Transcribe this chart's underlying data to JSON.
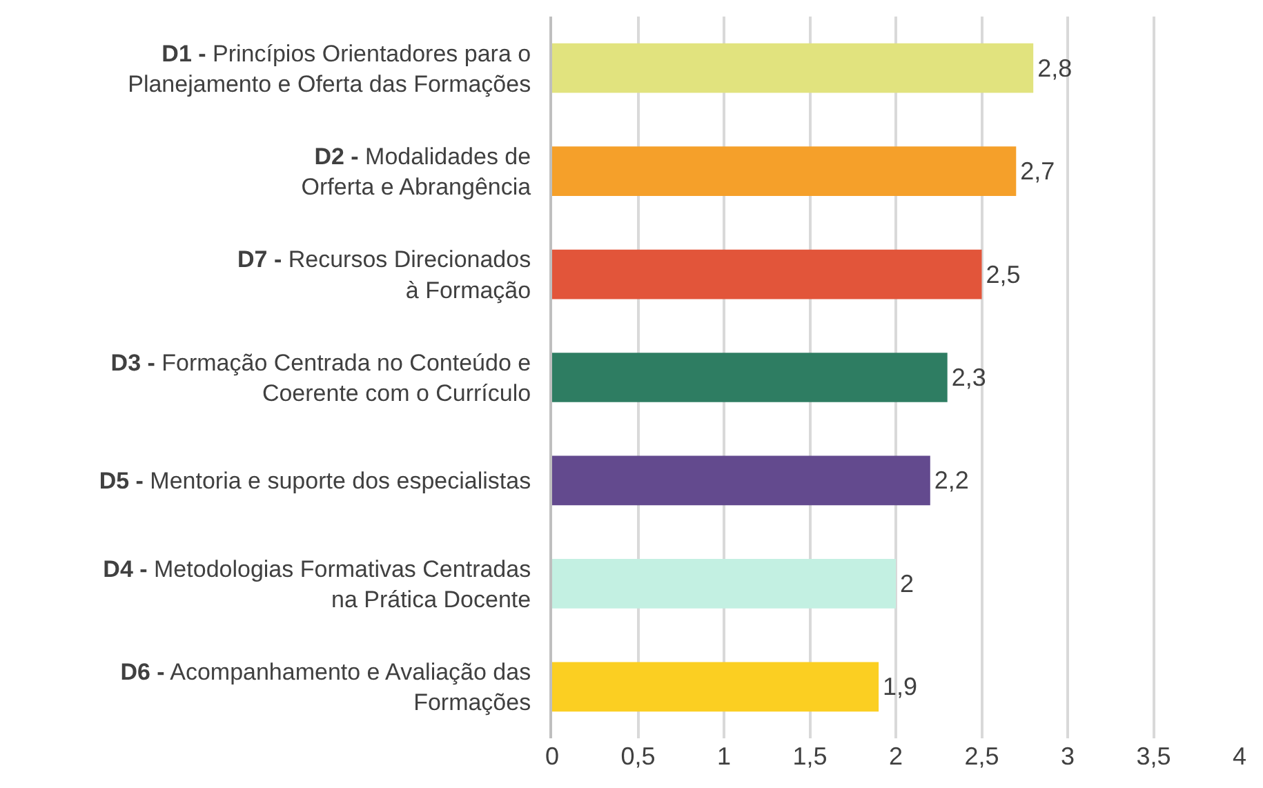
{
  "chart_data": {
    "type": "bar",
    "orientation": "horizontal",
    "categories": [
      "D1 - Princípios Orientadores para o\nPlanejamento e Oferta das Formações",
      "D2 - Modalidades de\nOrferta e Abrangência",
      "D7 - Recursos Direcionados\nà Formação",
      "D3 - Formação Centrada no Conteúdo e\nCoerente com o Currículo",
      "D5 - Mentoria e suporte dos especialistas",
      "D4 - Metodologias Formativas Centradas\nna Prática Docente",
      "D6 - Acompanhamento e Avaliação das\nFormações"
    ],
    "values": [
      2.8,
      2.7,
      2.5,
      2.3,
      2.2,
      2.0,
      1.9
    ],
    "value_labels": [
      "2,8",
      "2,7",
      "2,5",
      "2,3",
      "2,2",
      "2",
      "1,9"
    ],
    "colors": [
      "#e1e37e",
      "#f5a02a",
      "#e2553a",
      "#2e7d62",
      "#634a8e",
      "#c3f0e2",
      "#fbcf22"
    ],
    "xlim": [
      0,
      4
    ],
    "xticks": [
      0,
      {
        "value": 0.5,
        "label": "0,5"
      },
      1,
      {
        "value": 1.5,
        "label": "1,5"
      },
      2,
      {
        "value": 2.5,
        "label": "2,5"
      },
      3,
      {
        "value": 3.5,
        "label": "3,5"
      },
      4
    ],
    "grid": "x"
  }
}
